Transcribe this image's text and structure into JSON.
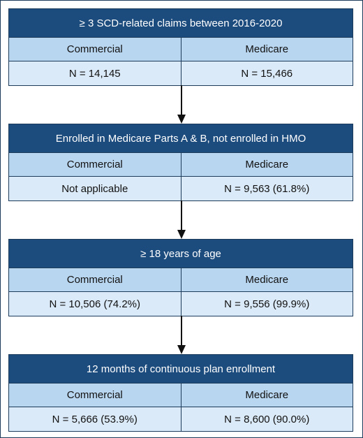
{
  "columns": [
    "Commercial",
    "Medicare"
  ],
  "steps": [
    {
      "title": "≥ 3 SCD-related claims between 2016-2020",
      "commercial": "N = 14,145",
      "medicare": "N = 15,466"
    },
    {
      "title": "Enrolled in Medicare Parts A & B, not enrolled in HMO",
      "commercial": "Not applicable",
      "medicare": "N = 9,563 (61.8%)"
    },
    {
      "title": "≥ 18 years of age",
      "commercial": "N = 10,506 (74.2%)",
      "medicare": "N = 9,556 (99.9%)"
    },
    {
      "title": "12 months of continuous plan enrollment",
      "commercial": "N = 5,666 (53.9%)",
      "medicare": "N = 8,600 (90.0%)"
    }
  ],
  "colors": {
    "title_bg": "#1c4b7d",
    "header_bg": "#b9d6f0",
    "value_bg": "#dbeaf8",
    "border": "#1d3c5c"
  }
}
